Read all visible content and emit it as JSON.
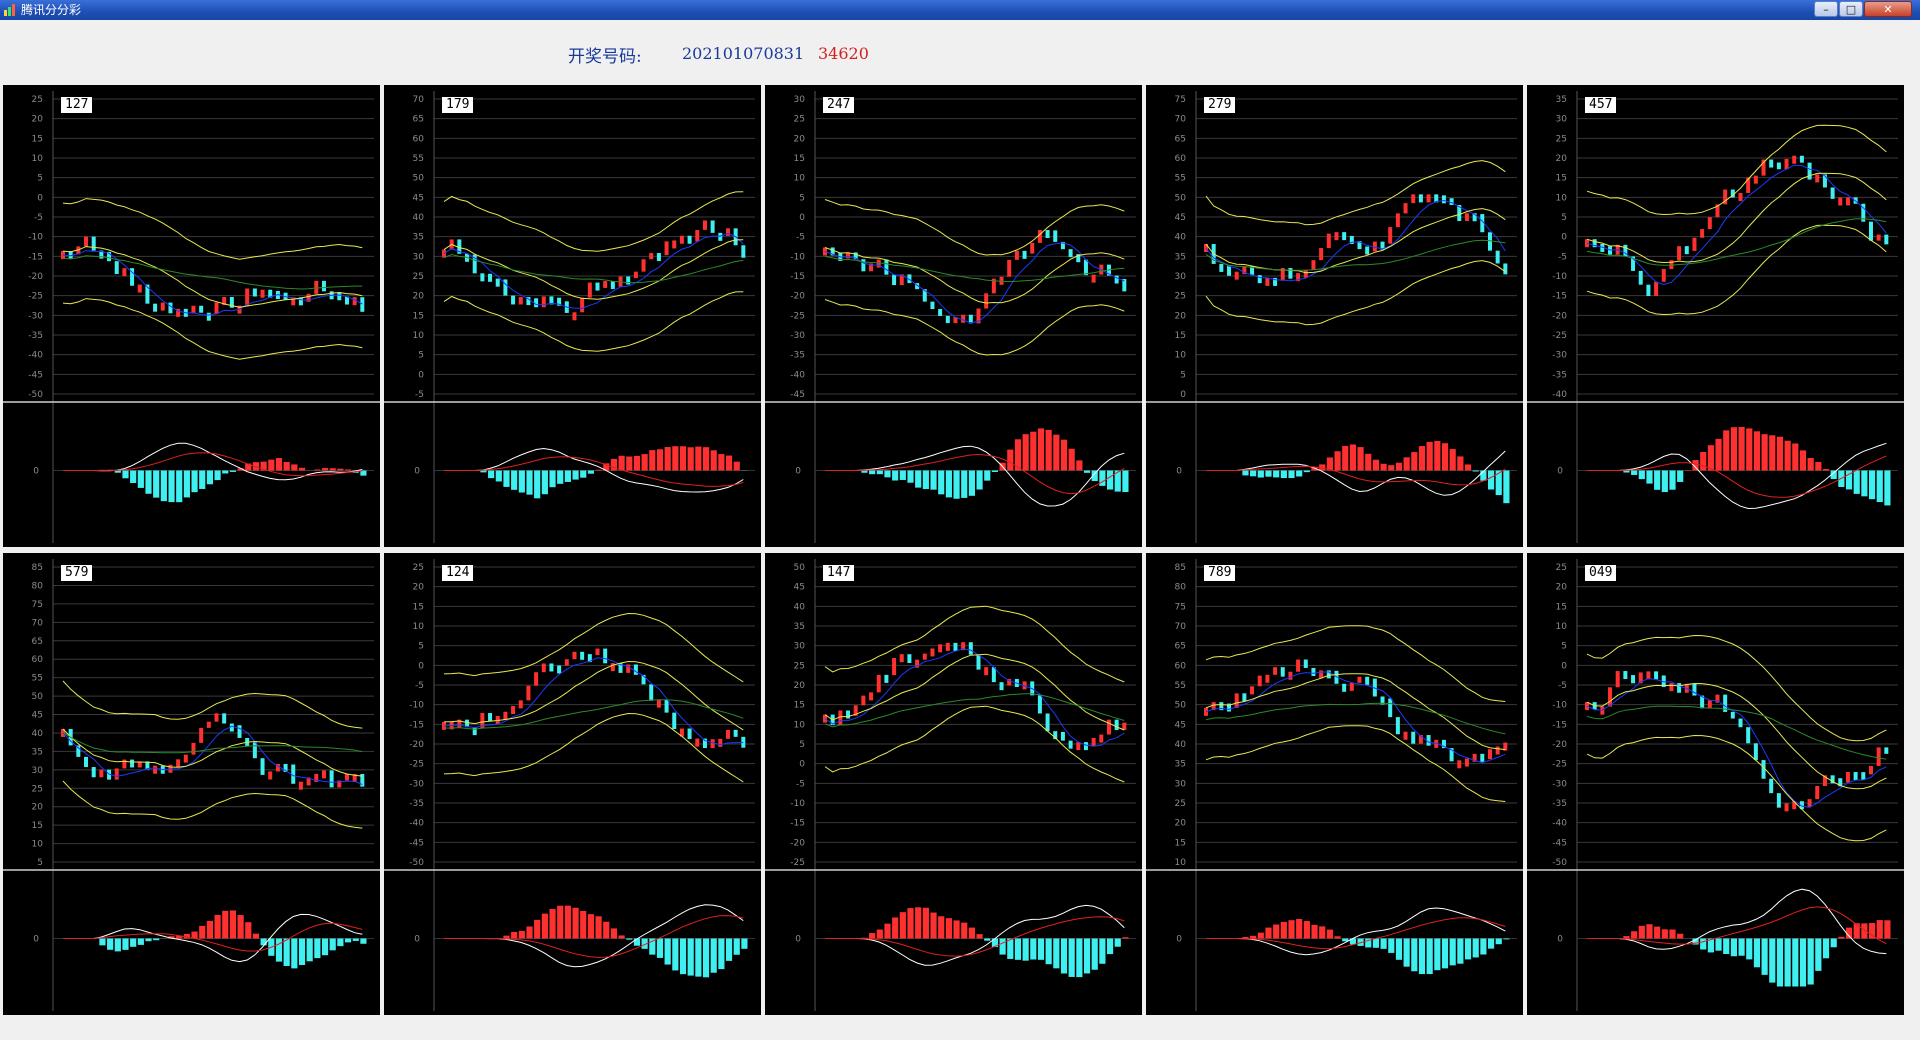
{
  "window": {
    "title": "腾讯分分彩",
    "controls": [
      "minimize",
      "maximize",
      "close"
    ],
    "icon": "app-icon"
  },
  "header": {
    "label": "开奖号码:",
    "period": "202101070831",
    "number": "34620"
  },
  "colors": {
    "up_candle": "#ff3030",
    "down_candle": "#40f0f0",
    "bollinger": "#e8e850",
    "ma_fast": "#1a3aff",
    "ma_slow": "#2a8a2a",
    "macd_fast": "#ffffff",
    "macd_slow": "#e02020",
    "grid": "#3a3a3a"
  },
  "panels": [
    {
      "label": "127",
      "yticks": [
        "25",
        "20",
        "15",
        "10",
        "5",
        "0",
        "-5",
        "-10",
        "-15",
        "-20",
        "-25",
        "-30",
        "-35",
        "-40",
        "-45",
        "-50"
      ],
      "macd_zero": "0"
    },
    {
      "label": "179",
      "yticks": [
        "70",
        "65",
        "60",
        "55",
        "50",
        "45",
        "40",
        "35",
        "30",
        "25",
        "20",
        "15",
        "10",
        "5",
        "0",
        "-5"
      ],
      "macd_zero": "0"
    },
    {
      "label": "247",
      "yticks": [
        "30",
        "25",
        "20",
        "15",
        "10",
        "5",
        "0",
        "-5",
        "-10",
        "-15",
        "-20",
        "-25",
        "-30",
        "-35",
        "-40",
        "-45"
      ],
      "macd_zero": "0"
    },
    {
      "label": "279",
      "yticks": [
        "75",
        "70",
        "65",
        "60",
        "55",
        "50",
        "45",
        "40",
        "35",
        "30",
        "25",
        "20",
        "15",
        "10",
        "5",
        "0"
      ],
      "macd_zero": "0"
    },
    {
      "label": "457",
      "yticks": [
        "35",
        "30",
        "25",
        "20",
        "15",
        "10",
        "5",
        "0",
        "-5",
        "-10",
        "-15",
        "-20",
        "-25",
        "-30",
        "-35",
        "-40"
      ],
      "macd_zero": "0"
    },
    {
      "label": "579",
      "yticks": [
        "85",
        "80",
        "75",
        "70",
        "65",
        "60",
        "55",
        "50",
        "45",
        "40",
        "35",
        "30",
        "25",
        "20",
        "15",
        "10",
        "5"
      ],
      "macd_zero": "0"
    },
    {
      "label": "124",
      "yticks": [
        "25",
        "20",
        "15",
        "10",
        "5",
        "0",
        "-5",
        "-10",
        "-15",
        "-20",
        "-25",
        "-30",
        "-35",
        "-40",
        "-45",
        "-50"
      ],
      "macd_zero": "0"
    },
    {
      "label": "147",
      "yticks": [
        "50",
        "45",
        "40",
        "35",
        "30",
        "25",
        "20",
        "15",
        "10",
        "5",
        "0",
        "-5",
        "-10",
        "-15",
        "-20",
        "-25"
      ],
      "macd_zero": "0"
    },
    {
      "label": "789",
      "yticks": [
        "85",
        "80",
        "75",
        "70",
        "65",
        "60",
        "55",
        "50",
        "45",
        "40",
        "35",
        "30",
        "25",
        "20",
        "15",
        "10"
      ],
      "macd_zero": "0"
    },
    {
      "label": "049",
      "yticks": [
        "25",
        "20",
        "15",
        "10",
        "5",
        "0",
        "-5",
        "-10",
        "-15",
        "-20",
        "-25",
        "-30",
        "-35",
        "-40",
        "-45",
        "-50"
      ],
      "macd_zero": "0"
    }
  ]
}
